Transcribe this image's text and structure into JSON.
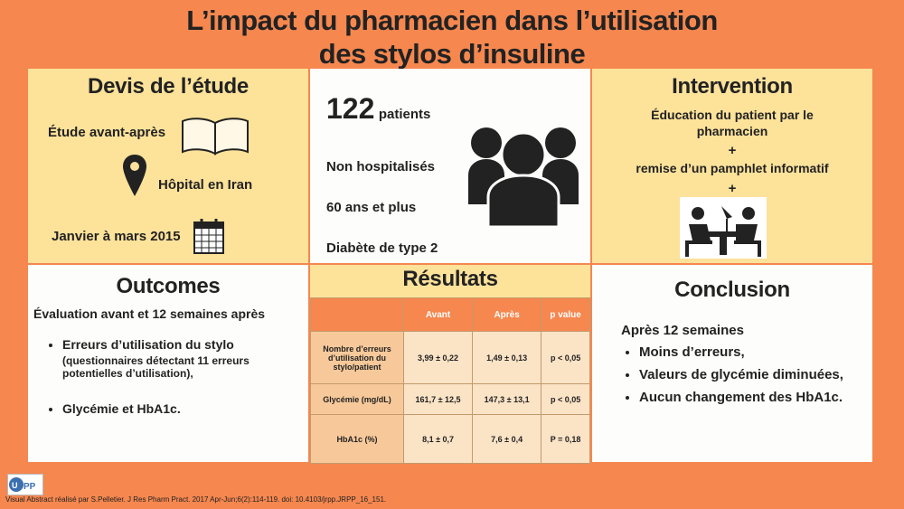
{
  "title": {
    "line1": "L’impact du pharmacien dans l’utilisation",
    "line2": "des stylos d’insuline"
  },
  "devis": {
    "heading": "Devis de l’étude",
    "study_type": "Étude avant-après",
    "location": "Hôpital en Iran",
    "period": "Janvier à mars 2015"
  },
  "patients": {
    "count": "122",
    "count_label": "patients",
    "criteria": [
      "Non hospitalisés",
      "60 ans et plus",
      "Diabète de type 2"
    ]
  },
  "intervention": {
    "heading": "Intervention",
    "line1": "Éducation du patient par le pharmacien",
    "plus": "+",
    "line2": "remise d’un pamphlet informatif"
  },
  "outcomes": {
    "heading": "Outcomes",
    "subtitle": "Évaluation avant et  12 semaines après",
    "item1": "Erreurs d’utilisation du stylo",
    "item1_note": "(questionnaires détectant 11 erreurs potentielles d’utilisation),",
    "item2": "Glycémie et HbA1c."
  },
  "results": {
    "heading": "Résultats",
    "columns": [
      "Avant",
      "Après",
      "p value"
    ],
    "rows": [
      {
        "label": "Nombre d’erreurs d’utilisation du stylo/patient",
        "avant": "3,99 ± 0,22",
        "apres": "1,49 ± 0,13",
        "p": "p < 0,05"
      },
      {
        "label": "Glycémie (mg/dL)",
        "avant": "161,7 ± 12,5",
        "apres": "147,3 ± 13,1",
        "p": "p < 0,05"
      },
      {
        "label": "HbA1c (%)",
        "avant": "8,1 ± 0,7",
        "apres": "7,6 ± 0,4",
        "p": "P = 0,18"
      }
    ]
  },
  "conclusion": {
    "heading": "Conclusion",
    "intro": "Après 12 semaines",
    "items": [
      "Moins d’erreurs,",
      "Valeurs de glycémie diminuées,",
      "Aucun changement des HbA1c."
    ]
  },
  "footer": {
    "citation": "Visual Abstract réalisé par S.Pelletier. J Res Pharm Pract. 2017 Apr-Jun;6(2):114-119. doi: 10.4103/jrpp.JRPP_16_151."
  },
  "icons": [
    "book-icon",
    "map-pin-icon",
    "calendar-icon",
    "group-people-icon",
    "meeting-icon",
    "urpp-logo"
  ]
}
